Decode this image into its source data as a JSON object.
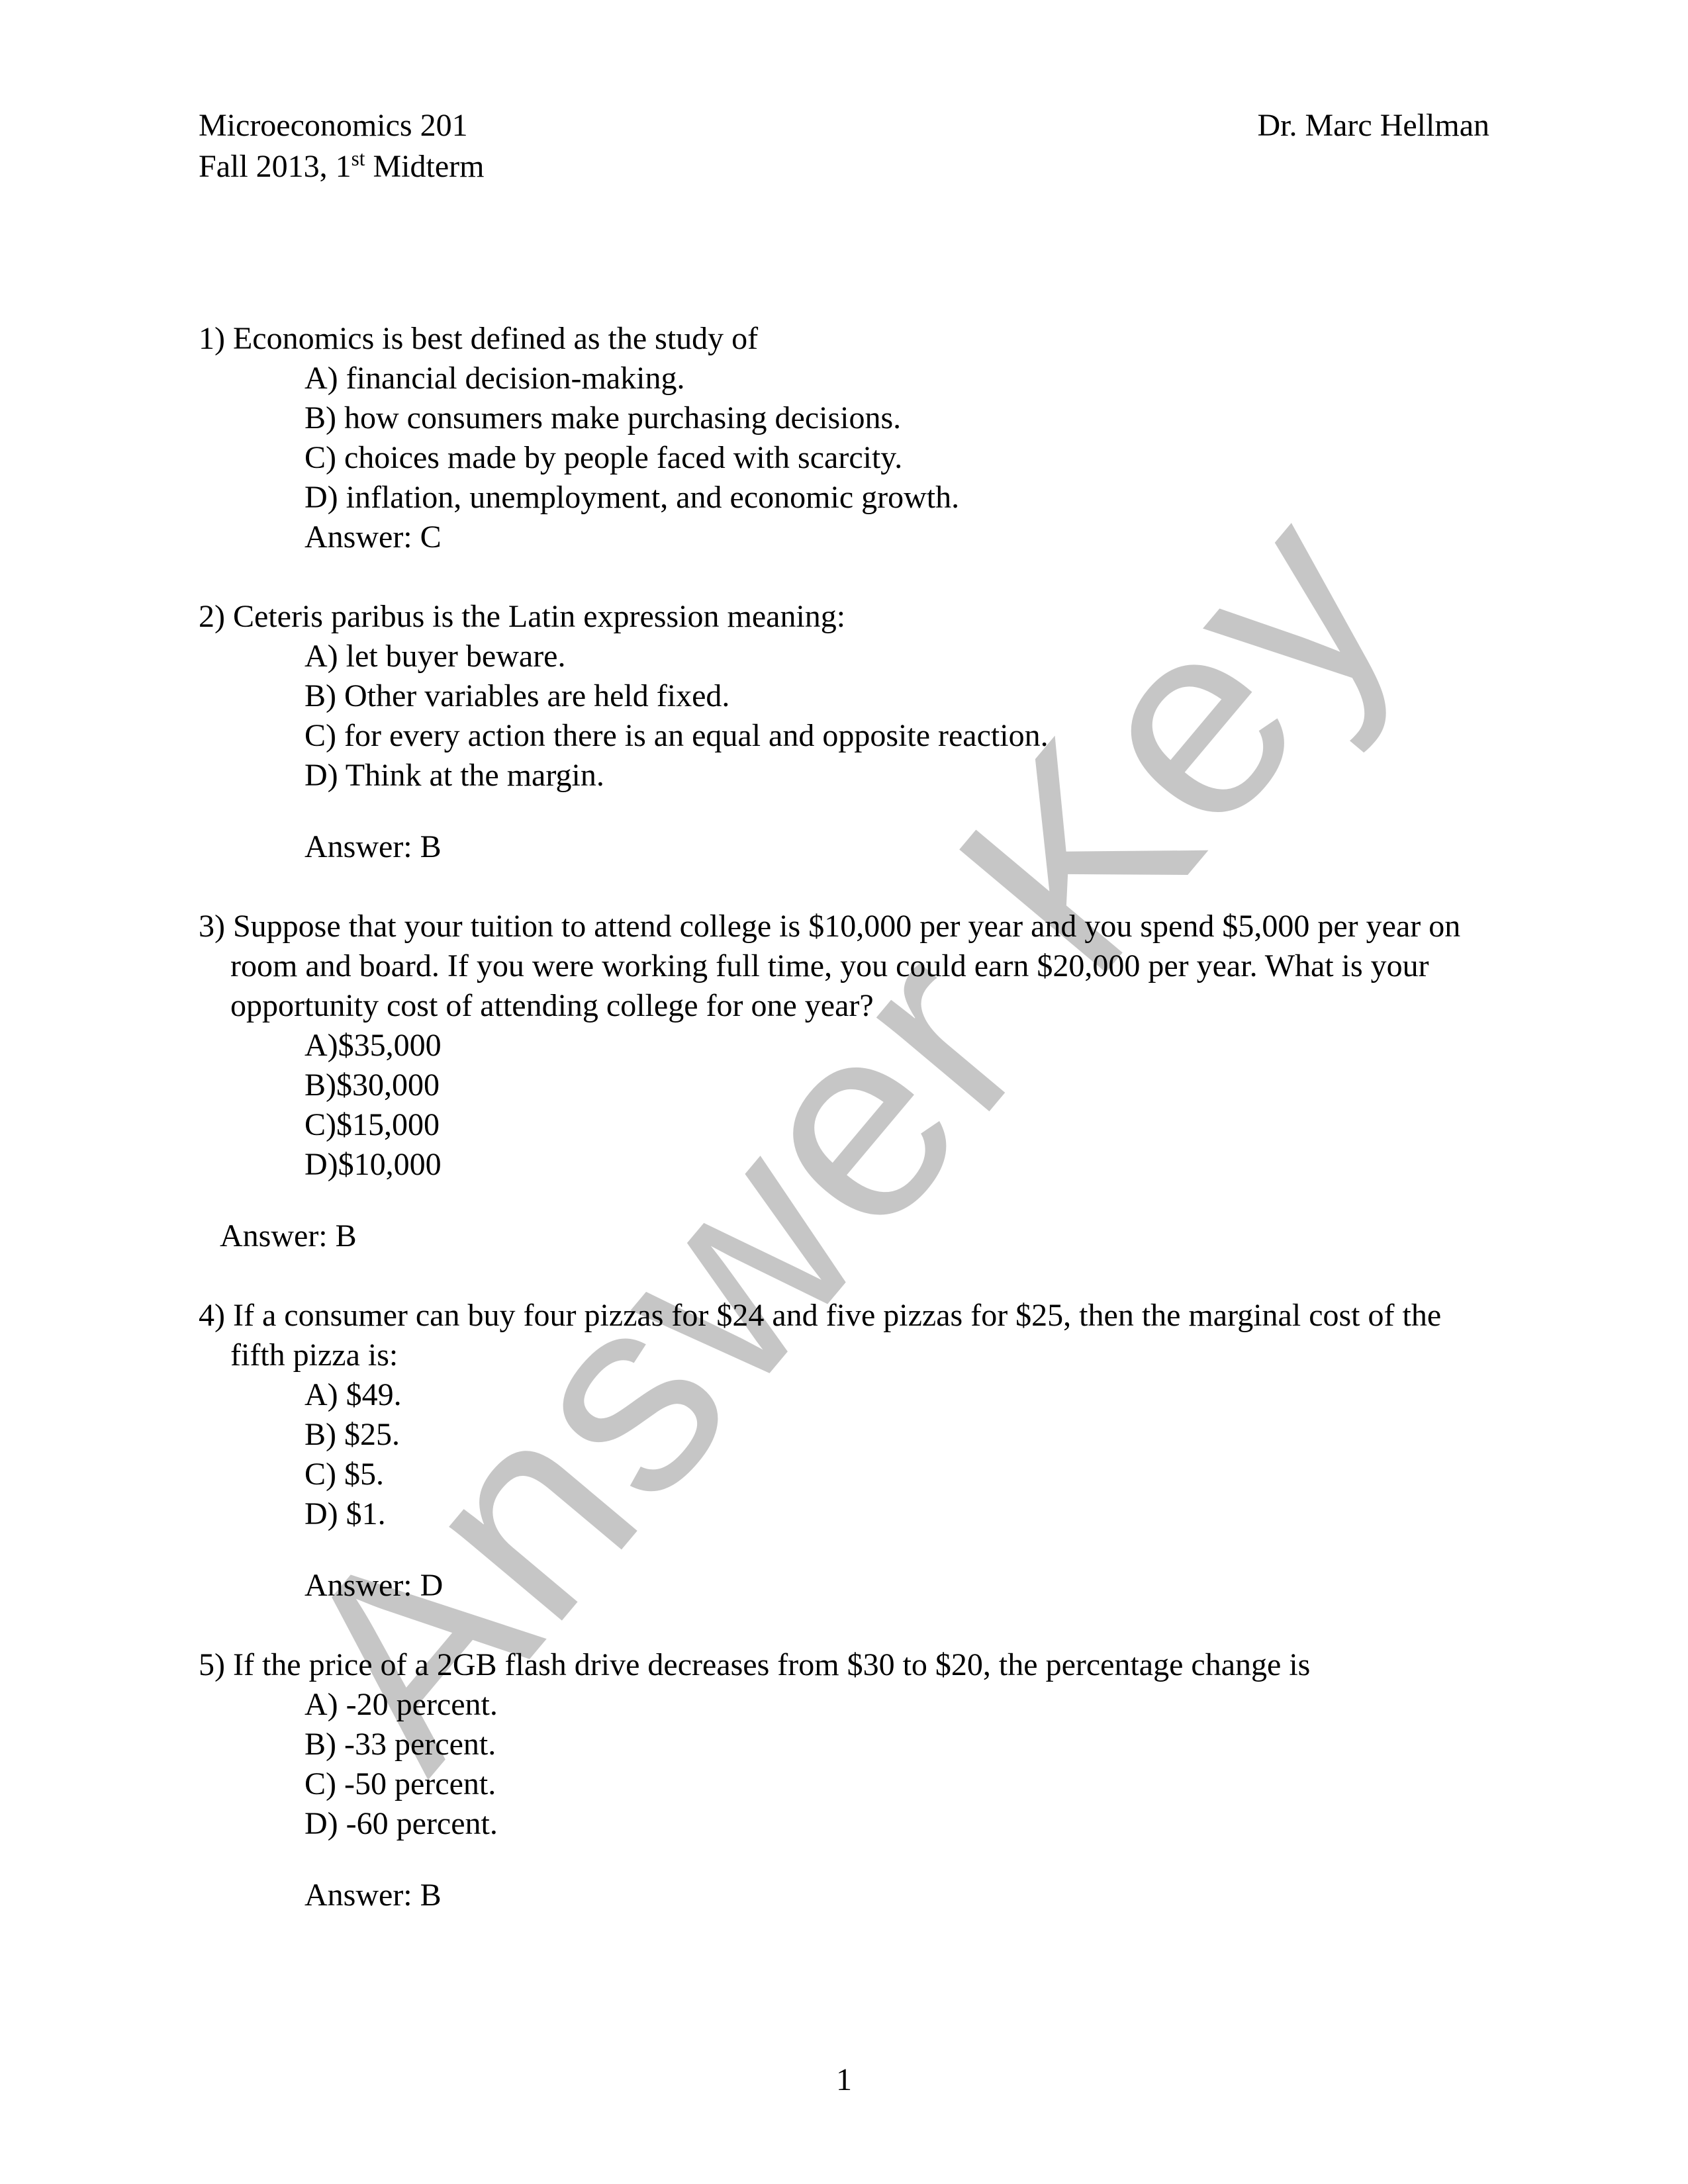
{
  "watermark": {
    "text": "Answer Key",
    "color": "#999999"
  },
  "header": {
    "course": "Microeconomics 201",
    "term": "Fall 2013, 1",
    "term_suffix": "st",
    "term_tail": " Midterm",
    "instructor": "Dr. Marc Hellman"
  },
  "page_number": "1",
  "questions": [
    {
      "num": "1)",
      "prompt": "Economics is best defined as the study of",
      "options": [
        "A) financial decision-making.",
        "B) how consumers make purchasing decisions.",
        "C) choices made by people faced with scarcity.",
        "D) inflation, unemployment, and economic growth."
      ],
      "answer_label": "Answer:  C",
      "answer_indent": "options"
    },
    {
      "num": "2)",
      "prompt": "Ceteris paribus is the Latin expression meaning:",
      "options": [
        "A)  let buyer beware.",
        "B)  Other variables are held fixed.",
        "C)  for every action there is an equal and opposite reaction.",
        "D)  Think at the margin."
      ],
      "answer_label": "Answer: B",
      "answer_indent": "options",
      "answer_gap": true
    },
    {
      "num": "3)",
      "prompt": "Suppose that your tuition to attend college is $10,000 per year and you spend $5,000 per year on room and board. If you were working full time, you could earn $20,000 per year. What is your opportunity cost of attending college for one year?",
      "options": [
        "A)$35,000",
        "B)$30,000",
        "C)$15,000",
        "D)$10,000"
      ],
      "answer_label": "Answer:  B",
      "answer_indent": "out",
      "answer_gap": true
    },
    {
      "num": "4)",
      "prompt": "If a consumer can buy four pizzas for $24 and five pizzas for $25, then the marginal cost of the fifth pizza is:",
      "options": [
        "A) $49.",
        "B) $25.",
        "C) $5.",
        "D) $1."
      ],
      "answer_label": "Answer:  D",
      "answer_indent": "options",
      "answer_gap": true
    },
    {
      "num": "5)",
      "prompt": "If the price of a 2GB flash drive decreases from $30 to $20, the percentage change is",
      "options": [
        "A) -20 percent.",
        "B) -33 percent.",
        "C) -50 percent.",
        "D) -60 percent."
      ],
      "answer_label": "Answer:  B",
      "answer_indent": "options",
      "answer_gap": true
    }
  ]
}
